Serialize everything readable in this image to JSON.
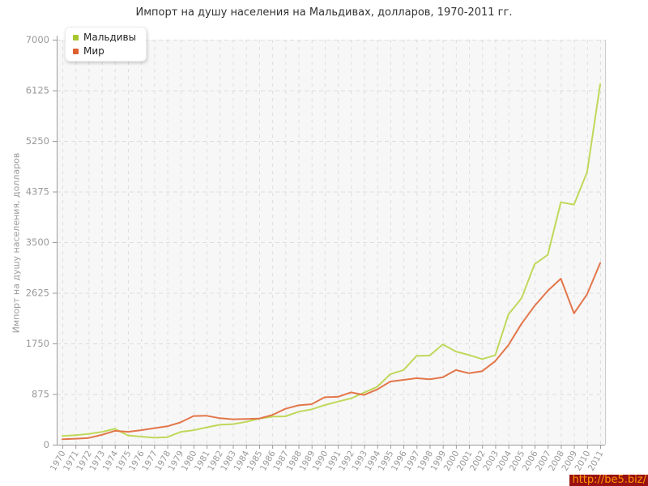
{
  "page": {
    "title": "Импорт на душу населения на Мальдивах, долларов, 1970-2011 гг."
  },
  "watermark": {
    "text": "http://be5.biz/",
    "bg": "#991111",
    "fg": "#ff9900"
  },
  "chart_data": {
    "type": "line",
    "title": "Импорт на душу населения на Мальдивах, долларов, 1970-2011 гг.",
    "xlabel": "",
    "ylabel": "Импорт на душу населения, долларов",
    "ylim": [
      0,
      7000
    ],
    "yticks": [
      0,
      875,
      1750,
      2625,
      3500,
      4375,
      5250,
      6125,
      7000
    ],
    "grid": true,
    "legend_position": "top-left",
    "plot_background": "#f7f7f7",
    "gridline_color": "#dedede",
    "axis_color": "#9a9a9a",
    "tick_label_color": "#999999",
    "categories": [
      1970,
      1971,
      1972,
      1973,
      1974,
      1975,
      1976,
      1977,
      1978,
      1979,
      1980,
      1981,
      1982,
      1983,
      1984,
      1985,
      1986,
      1987,
      1988,
      1989,
      1990,
      1991,
      1992,
      1993,
      1994,
      1995,
      1996,
      1997,
      1998,
      1999,
      2000,
      2001,
      2002,
      2003,
      2004,
      2005,
      2006,
      2007,
      2008,
      2009,
      2010,
      2011
    ],
    "series": [
      {
        "name": "Мальдивы",
        "color": "#bfd85a",
        "swatch": "#a6c62c",
        "values": [
          150,
          165,
          185,
          220,
          275,
          160,
          140,
          120,
          130,
          220,
          250,
          300,
          345,
          355,
          395,
          450,
          485,
          490,
          570,
          610,
          685,
          745,
          800,
          900,
          1000,
          1220,
          1290,
          1535,
          1540,
          1735,
          1610,
          1550,
          1480,
          1545,
          2250,
          2530,
          3120,
          3280,
          4190,
          4150,
          4710,
          6230
        ]
      },
      {
        "name": "Мир",
        "color": "#e3764a",
        "swatch": "#dd6030",
        "values": [
          95,
          103,
          116,
          170,
          240,
          222,
          250,
          285,
          318,
          385,
          495,
          500,
          458,
          440,
          445,
          452,
          512,
          620,
          680,
          700,
          820,
          828,
          905,
          860,
          955,
          1092,
          1120,
          1150,
          1130,
          1165,
          1290,
          1235,
          1270,
          1445,
          1720,
          2090,
          2400,
          2660,
          2870,
          2270,
          2600,
          3140
        ]
      }
    ]
  }
}
